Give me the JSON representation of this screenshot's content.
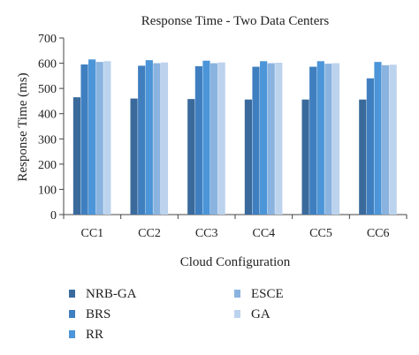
{
  "chart_data": {
    "type": "bar",
    "title": "Response Time - Two Data Centers",
    "xlabel": "Cloud Configuration",
    "ylabel": "Response Time (ms)",
    "ylim": [
      0,
      700
    ],
    "yticks": [
      "0",
      "100",
      "200",
      "300",
      "400",
      "500",
      "600",
      "700"
    ],
    "categories": [
      "CC1",
      "CC2",
      "CC3",
      "CC4",
      "CC5",
      "CC6"
    ],
    "grid": false,
    "legend_position": "bottom",
    "series": [
      {
        "name": "NRB-GA",
        "color": "#3a6a9c",
        "values": [
          465,
          460,
          458,
          456,
          456,
          456
        ]
      },
      {
        "name": "BRS",
        "color": "#3f7fc0",
        "values": [
          595,
          590,
          588,
          586,
          586,
          540
        ]
      },
      {
        "name": "RR",
        "color": "#4b95d8",
        "values": [
          615,
          612,
          610,
          608,
          608,
          605
        ]
      },
      {
        "name": "ESCE",
        "color": "#8ab3df",
        "values": [
          605,
          600,
          600,
          600,
          598,
          592
        ]
      },
      {
        "name": "GA",
        "color": "#bcd3ee",
        "values": [
          608,
          603,
          603,
          602,
          600,
          594
        ]
      }
    ]
  }
}
